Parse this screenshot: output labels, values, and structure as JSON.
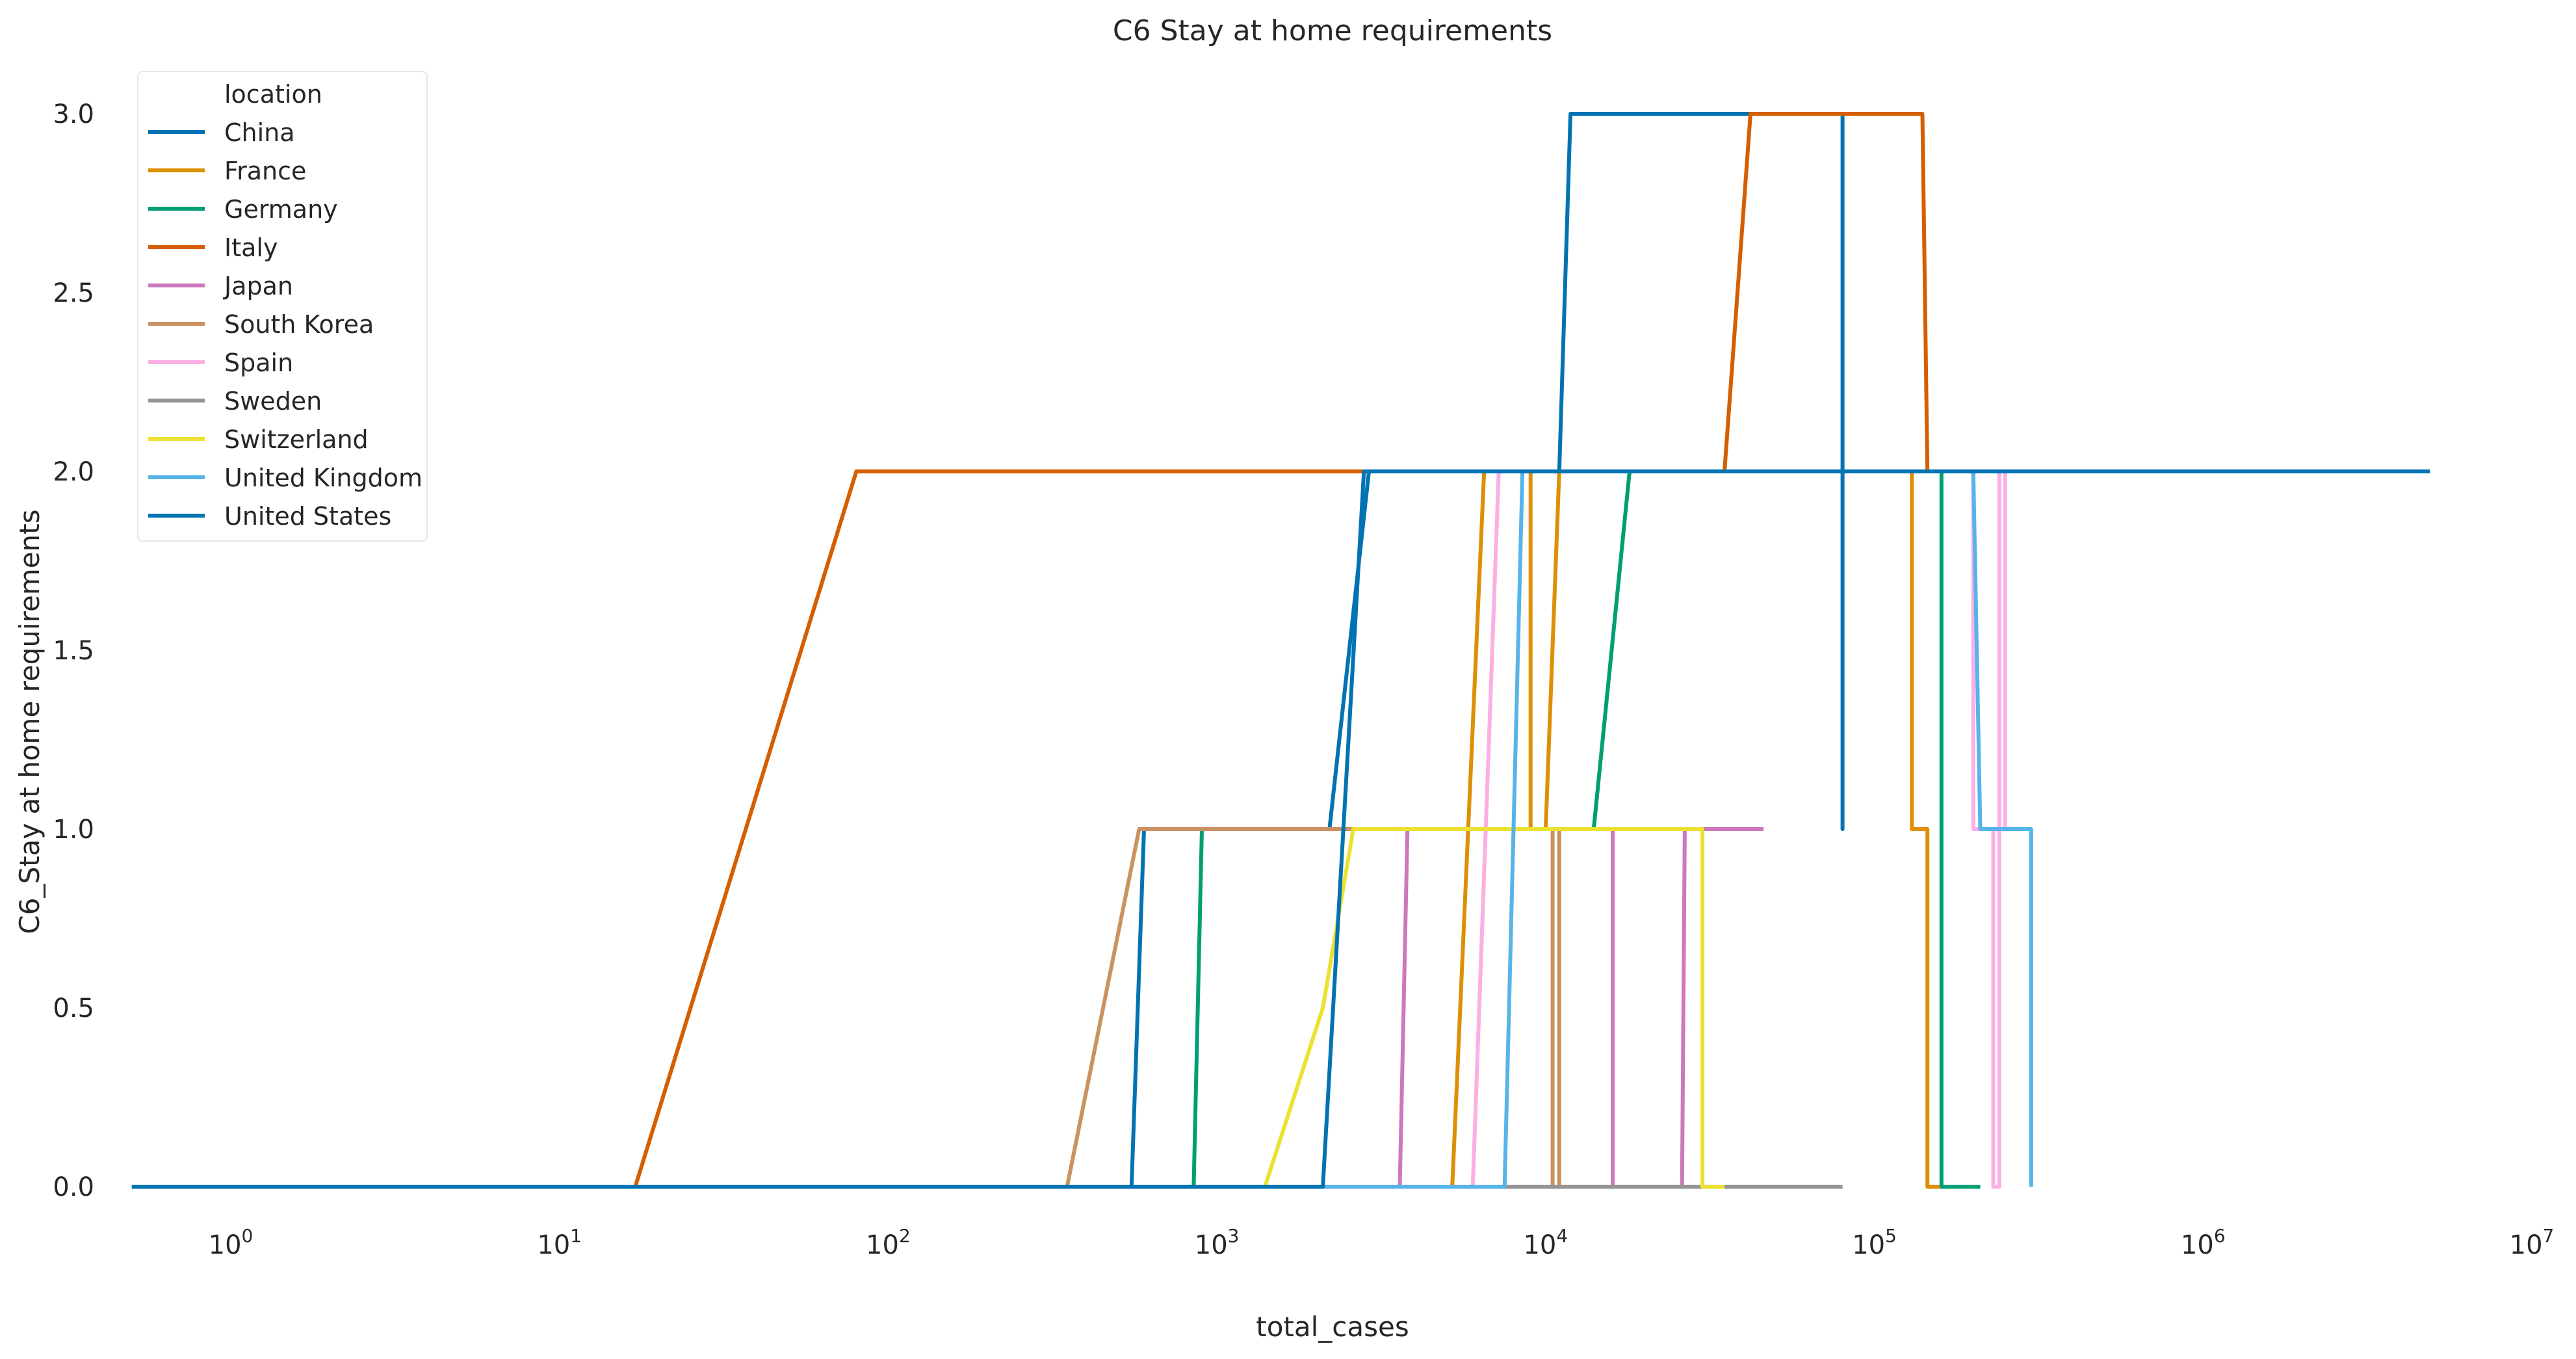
{
  "chart_data": {
    "type": "line",
    "title": "C6 Stay at home requirements",
    "xlabel": "total_cases",
    "ylabel": "C6_Stay at home requirements",
    "x_scale": "log",
    "xlim": [
      0.5,
      10000000
    ],
    "ylim": [
      -0.18,
      3.05
    ],
    "grid": false,
    "legend": {
      "title": "location",
      "placement": "top-left"
    },
    "x_ticks": [
      {
        "value": 1,
        "base": "10",
        "exp": "0"
      },
      {
        "value": 10,
        "base": "10",
        "exp": "1"
      },
      {
        "value": 100,
        "base": "10",
        "exp": "2"
      },
      {
        "value": 1000,
        "base": "10",
        "exp": "3"
      },
      {
        "value": 10000,
        "base": "10",
        "exp": "4"
      },
      {
        "value": 100000,
        "base": "10",
        "exp": "5"
      },
      {
        "value": 1000000,
        "base": "10",
        "exp": "6"
      },
      {
        "value": 10000000,
        "base": "10",
        "exp": "7"
      }
    ],
    "y_ticks": [
      {
        "value": 0,
        "label": "0.0"
      },
      {
        "value": 0.5,
        "label": "0.5"
      },
      {
        "value": 1,
        "label": "1.0"
      },
      {
        "value": 1.5,
        "label": "1.5"
      },
      {
        "value": 2,
        "label": "2.0"
      },
      {
        "value": 2.5,
        "label": "2.5"
      },
      {
        "value": 3,
        "label": "3.0"
      }
    ],
    "series": [
      {
        "name": "China",
        "color": "#0173b2",
        "points": [
          [
            0.5,
            0
          ],
          [
            600,
            0
          ],
          [
            550,
            0
          ],
          [
            600,
            1
          ],
          [
            2000,
            1
          ],
          [
            2200,
            1
          ],
          [
            2900,
            2
          ],
          [
            11000,
            2
          ],
          [
            11900,
            3
          ],
          [
            80000,
            3
          ],
          [
            80000,
            1
          ],
          [
            80000,
            3
          ],
          [
            80000,
            2
          ]
        ]
      },
      {
        "name": "France",
        "color": "#de8f05",
        "points": [
          [
            1,
            0
          ],
          [
            5200,
            0
          ],
          [
            6500,
            2
          ],
          [
            9000,
            2
          ],
          [
            9000,
            1
          ],
          [
            10000,
            1
          ],
          [
            11000,
            2
          ],
          [
            130000,
            2
          ],
          [
            130000,
            1
          ],
          [
            145000,
            1
          ],
          [
            145000,
            0
          ],
          [
            160000,
            0
          ]
        ]
      },
      {
        "name": "Germany",
        "color": "#029e73",
        "points": [
          [
            1,
            0
          ],
          [
            850,
            0
          ],
          [
            900,
            1
          ],
          [
            14000,
            1
          ],
          [
            18000,
            2
          ],
          [
            160000,
            2
          ],
          [
            160000,
            0
          ],
          [
            210000,
            0
          ]
        ]
      },
      {
        "name": "Italy",
        "color": "#d55e00",
        "points": [
          [
            1,
            0
          ],
          [
            17,
            0
          ],
          [
            80,
            2
          ],
          [
            35000,
            2
          ],
          [
            42000,
            3
          ],
          [
            140000,
            3
          ],
          [
            145000,
            2
          ],
          [
            200000,
            2
          ]
        ]
      },
      {
        "name": "Japan",
        "color": "#cc78bc",
        "points": [
          [
            1,
            0
          ],
          [
            3600,
            0
          ],
          [
            3800,
            1
          ],
          [
            16000,
            1
          ],
          [
            16000,
            0
          ],
          [
            26000,
            0
          ],
          [
            26500,
            1
          ],
          [
            46000,
            1
          ]
        ]
      },
      {
        "name": "South Korea",
        "color": "#ca9161",
        "points": [
          [
            1,
            0
          ],
          [
            350,
            0
          ],
          [
            580,
            1
          ],
          [
            10500,
            1
          ],
          [
            10500,
            0
          ],
          [
            11000,
            0
          ],
          [
            11000,
            1
          ],
          [
            11500,
            1
          ]
        ]
      },
      {
        "name": "Spain",
        "color": "#fbafe4",
        "points": [
          [
            1,
            0
          ],
          [
            6000,
            0
          ],
          [
            7200,
            2
          ],
          [
            8000,
            2
          ],
          [
            200000,
            2
          ],
          [
            200000,
            1
          ],
          [
            230000,
            1
          ],
          [
            230000,
            0
          ],
          [
            240000,
            0
          ],
          [
            240000,
            2
          ],
          [
            250000,
            2
          ],
          [
            250000,
            1
          ],
          [
            255000,
            1
          ]
        ]
      },
      {
        "name": "Sweden",
        "color": "#949494",
        "points": [
          [
            1,
            0
          ],
          [
            80000,
            0
          ]
        ]
      },
      {
        "name": "Switzerland",
        "color": "#ece133",
        "points": [
          [
            1,
            0
          ],
          [
            1400,
            0
          ],
          [
            2100,
            0.5
          ],
          [
            2600,
            1
          ],
          [
            30000,
            1
          ],
          [
            30000,
            0
          ],
          [
            35000,
            0
          ]
        ]
      },
      {
        "name": "United Kingdom",
        "color": "#56b4e9",
        "points": [
          [
            1,
            0
          ],
          [
            7500,
            0
          ],
          [
            8500,
            2
          ],
          [
            9000,
            2
          ],
          [
            200000,
            2
          ],
          [
            210000,
            1
          ],
          [
            300000,
            1
          ],
          [
            300000,
            0
          ]
        ]
      },
      {
        "name": "United States",
        "color": "#0173b2",
        "points": [
          [
            0.5,
            0
          ],
          [
            2100,
            0
          ],
          [
            2800,
            2
          ],
          [
            4900000,
            2
          ]
        ]
      }
    ]
  }
}
